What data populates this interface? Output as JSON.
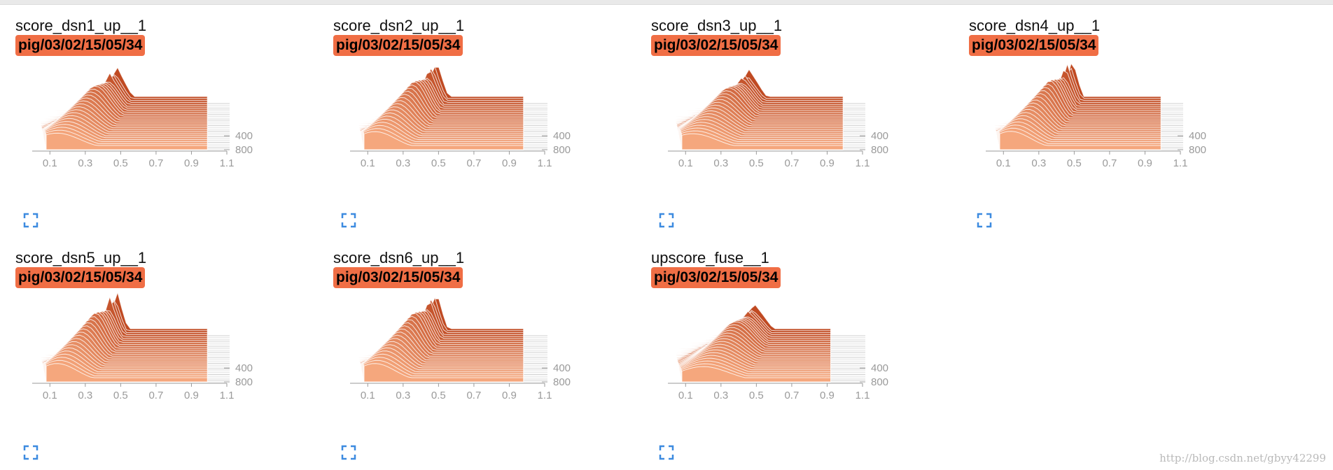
{
  "watermark": "http://blog.csdn.net/gbyy42299",
  "colors": {
    "badge": "#f06e45",
    "front": "#f5a77d",
    "back": "#c04a22",
    "axis": "#9a9a9a",
    "expand_icon": "#3d8be0"
  },
  "cards": [
    {
      "title": "score_dsn1_up__1",
      "run": "pig/03/02/15/05/34"
    },
    {
      "title": "score_dsn2_up__1",
      "run": "pig/03/02/15/05/34"
    },
    {
      "title": "score_dsn3_up__1",
      "run": "pig/03/02/15/05/34"
    },
    {
      "title": "score_dsn4_up__1",
      "run": "pig/03/02/15/05/34"
    },
    {
      "title": "score_dsn5_up__1",
      "run": "pig/03/02/15/05/34"
    },
    {
      "title": "score_dsn6_up__1",
      "run": "pig/03/02/15/05/34"
    },
    {
      "title": "upscore_fuse__1",
      "run": "pig/03/02/15/05/34"
    }
  ],
  "chart_data": [
    {
      "type": "area",
      "title": "score_dsn1_up__1",
      "xticks": [
        "0.1",
        "0.3",
        "0.5",
        "0.7",
        "0.9",
        "1.1"
      ],
      "xlim": [
        0.0,
        1.1
      ],
      "yticks": [
        "400",
        "800"
      ],
      "ylim": [
        0,
        800
      ],
      "x_end": 0.99,
      "peak_front": 0.14,
      "peak_back": 0.48,
      "peak_sharpness": 0.55
    },
    {
      "type": "area",
      "title": "score_dsn2_up__1",
      "xticks": [
        "0.1",
        "0.3",
        "0.5",
        "0.7",
        "0.9",
        "1.1"
      ],
      "xlim": [
        0.0,
        1.1
      ],
      "yticks": [
        "400",
        "800"
      ],
      "ylim": [
        0,
        800
      ],
      "x_end": 0.98,
      "peak_front": 0.14,
      "peak_back": 0.49,
      "peak_sharpness": 0.8
    },
    {
      "type": "area",
      "title": "score_dsn3_up__1",
      "xticks": [
        "0.1",
        "0.3",
        "0.5",
        "0.7",
        "0.9",
        "1.1"
      ],
      "xlim": [
        0.0,
        1.1
      ],
      "yticks": [
        "400",
        "800"
      ],
      "ylim": [
        0,
        800
      ],
      "x_end": 0.99,
      "peak_front": 0.14,
      "peak_back": 0.46,
      "peak_sharpness": 0.45
    },
    {
      "type": "area",
      "title": "score_dsn4_up__1",
      "xticks": [
        "0.1",
        "0.3",
        "0.5",
        "0.7",
        "0.9",
        "1.1"
      ],
      "xlim": [
        0.0,
        1.1
      ],
      "yticks": [
        "400",
        "800"
      ],
      "ylim": [
        0,
        800
      ],
      "x_end": 0.99,
      "peak_front": 0.14,
      "peak_back": 0.49,
      "peak_sharpness": 0.85
    },
    {
      "type": "area",
      "title": "score_dsn5_up__1",
      "xticks": [
        "0.1",
        "0.3",
        "0.5",
        "0.7",
        "0.9",
        "1.1"
      ],
      "xlim": [
        0.0,
        1.1
      ],
      "yticks": [
        "400",
        "800"
      ],
      "ylim": [
        0,
        800
      ],
      "x_end": 0.99,
      "peak_front": 0.14,
      "peak_back": 0.48,
      "peak_sharpness": 0.85
    },
    {
      "type": "area",
      "title": "score_dsn6_up__1",
      "xticks": [
        "0.1",
        "0.3",
        "0.5",
        "0.7",
        "0.9",
        "1.1"
      ],
      "xlim": [
        0.0,
        1.1
      ],
      "yticks": [
        "400",
        "800"
      ],
      "ylim": [
        0,
        800
      ],
      "x_end": 0.98,
      "peak_front": 0.14,
      "peak_back": 0.49,
      "peak_sharpness": 0.85
    },
    {
      "type": "area",
      "title": "upscore_fuse__1",
      "xticks": [
        "0.1",
        "0.3",
        "0.5",
        "0.7",
        "0.9",
        "1.1"
      ],
      "xlim": [
        0.0,
        1.1
      ],
      "yticks": [
        "400",
        "800"
      ],
      "ylim": [
        0,
        800
      ],
      "x_end": 0.92,
      "peak_front": 0.2,
      "peak_back": 0.49,
      "peak_sharpness": 0.35
    }
  ]
}
